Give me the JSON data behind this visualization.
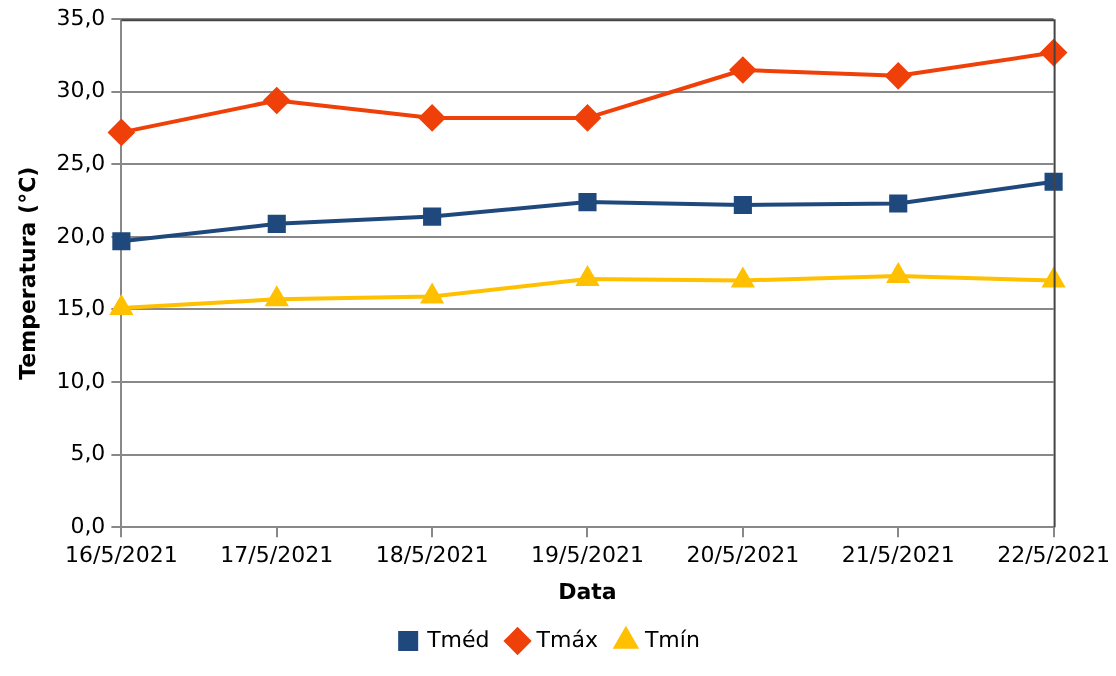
{
  "chart_data": {
    "type": "line",
    "xlabel": "Data",
    "ylabel": "Temperatura (°C)",
    "categories": [
      "16/5/2021",
      "17/5/2021",
      "18/5/2021",
      "19/5/2021",
      "20/5/2021",
      "21/5/2021",
      "22/5/2021"
    ],
    "series": [
      {
        "name": "Tméd",
        "color": "#1f497d",
        "marker": "square",
        "values": [
          19.7,
          20.9,
          21.4,
          22.4,
          22.2,
          22.3,
          23.8
        ]
      },
      {
        "name": "Tmáx",
        "color": "#f0400a",
        "marker": "diamond",
        "values": [
          27.2,
          29.4,
          28.2,
          28.2,
          31.5,
          31.1,
          32.7
        ]
      },
      {
        "name": "Tmín",
        "color": "#ffc000",
        "marker": "triangle",
        "values": [
          15.1,
          15.7,
          15.9,
          17.1,
          17.0,
          17.3,
          17.0
        ]
      }
    ],
    "ylim": [
      0,
      35
    ],
    "yticks": [
      {
        "value": 0,
        "label": "0,0"
      },
      {
        "value": 5,
        "label": "5,0"
      },
      {
        "value": 10,
        "label": "10,0"
      },
      {
        "value": 15,
        "label": "15,0"
      },
      {
        "value": 20,
        "label": "20,0"
      },
      {
        "value": 25,
        "label": "25,0"
      },
      {
        "value": 30,
        "label": "30,0"
      },
      {
        "value": 35,
        "label": "35,0"
      }
    ],
    "grid": "y",
    "legend": "bottom",
    "line_style": "solid"
  }
}
